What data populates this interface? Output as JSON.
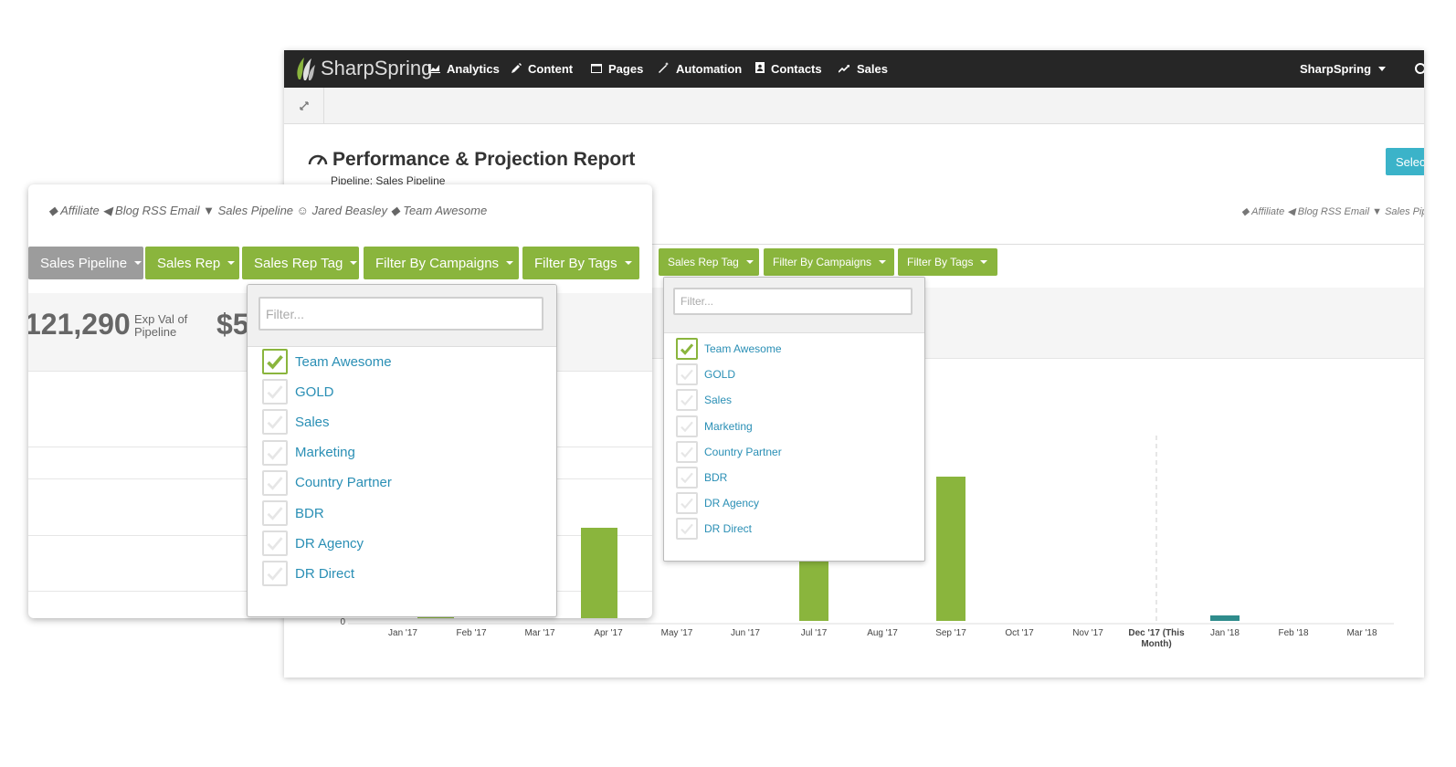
{
  "navbar": {
    "logo": "SharpSpring",
    "items": [
      {
        "label": "Analytics",
        "icon": "bar-chart-icon"
      },
      {
        "label": "Content",
        "icon": "pencil-icon"
      },
      {
        "label": "Pages",
        "icon": "window-icon"
      },
      {
        "label": "Automation",
        "icon": "magic-wand-icon"
      },
      {
        "label": "Contacts",
        "icon": "address-book-icon"
      },
      {
        "label": "Sales",
        "icon": "trend-line-icon"
      }
    ],
    "account": "SharpSpring"
  },
  "report": {
    "title": "Performance & Projection Report",
    "subtitle": "Pipeline: Sales Pipeline",
    "select_label": "Selec"
  },
  "breadcrumbs": {
    "front": [
      "Affiliate",
      "Blog RSS Email",
      "Sales Pipeline",
      "Jared Beasley",
      "Team Awesome"
    ],
    "back": [
      "Affiliate",
      "Blog RSS Email",
      "Sales Pipe"
    ]
  },
  "filters_front": {
    "sales_pipeline": "Sales Pipeline",
    "sales_rep": "Sales Rep",
    "sales_rep_tag": "Sales Rep Tag",
    "filter_by_campaigns": "Filter By Campaigns",
    "filter_by_tags": "Filter By Tags"
  },
  "filters_back": {
    "sales_rep_tag": "Sales Rep Tag",
    "filter_by_campaigns": "Filter By Campaigns",
    "filter_by_tags": "Filter By Tags"
  },
  "stats": {
    "pipeline_value": "121,290",
    "pipeline_label_1": "Exp Val of",
    "pipeline_label_2": "Pipeline",
    "second_value": "$5",
    "back_value": "5"
  },
  "dropdown": {
    "placeholder": "Filter...",
    "options": [
      {
        "label": "Team Awesome",
        "checked": true
      },
      {
        "label": "GOLD",
        "checked": false
      },
      {
        "label": "Sales",
        "checked": false
      },
      {
        "label": "Marketing",
        "checked": false
      },
      {
        "label": "Country Partner",
        "checked": false
      },
      {
        "label": "BDR",
        "checked": false
      },
      {
        "label": "DR Agency",
        "checked": false
      },
      {
        "label": "DR Direct",
        "checked": false
      }
    ]
  },
  "chart_data": {
    "type": "bar",
    "categories": [
      "Jan '17",
      "Feb '17",
      "Mar '17",
      "Apr '17",
      "May '17",
      "Jun '17",
      "Jul '17",
      "Aug '17",
      "Sep '17",
      "Oct '17",
      "Nov '17",
      "Dec '17 (This Month)",
      "Jan '18",
      "Feb '18",
      "Mar '18"
    ],
    "y_tick_labels": [
      "0"
    ],
    "highlight_category": "Dec '17 (This Month)",
    "colors": {
      "actual": "#8ab53d",
      "projected": "#2f8c8c"
    }
  }
}
